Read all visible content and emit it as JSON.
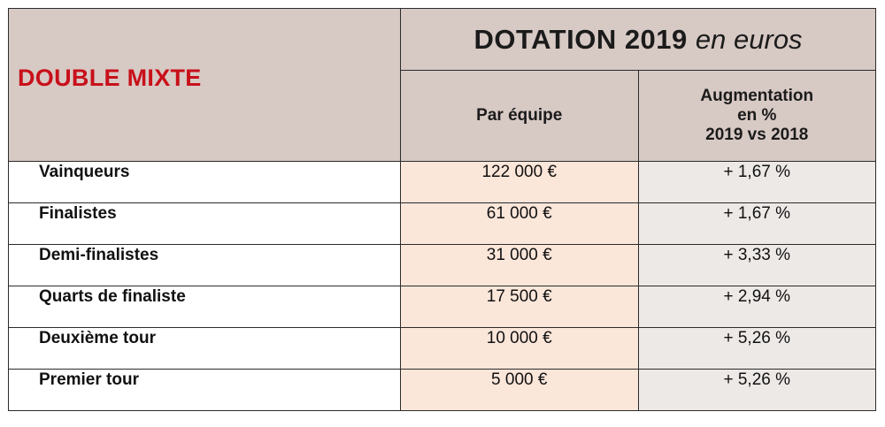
{
  "table": {
    "category": "DOUBLE MIXTE",
    "dotation_title": "DOTATION 2019",
    "dotation_unit": "en euros",
    "col_team": "Par équipe",
    "col_increase_lines": [
      "Augmentation",
      "en %",
      "2019 vs 2018"
    ],
    "rows": [
      {
        "round": "Vainqueurs",
        "amount": "122 000 €",
        "increase": "+ 1,67 %"
      },
      {
        "round": "Finalistes",
        "amount": "61 000 €",
        "increase": "+ 1,67 %"
      },
      {
        "round": "Demi-finalistes",
        "amount": "31 000 €",
        "increase": "+ 3,33 %"
      },
      {
        "round": "Quarts de finaliste",
        "amount": "17 500 €",
        "increase": "+ 2,94 %"
      },
      {
        "round": "Deuxième tour",
        "amount": "10 000 €",
        "increase": "+ 5,26 %"
      },
      {
        "round": "Premier tour",
        "amount": "5 000 €",
        "increase": "+ 5,26 %"
      }
    ]
  },
  "colors": {
    "header_bg": "#d7c9c4",
    "category_text": "#c8101a",
    "amount_bg": "#fbe6da",
    "increase_bg": "#ede9e7",
    "border": "#2b2b2b"
  }
}
